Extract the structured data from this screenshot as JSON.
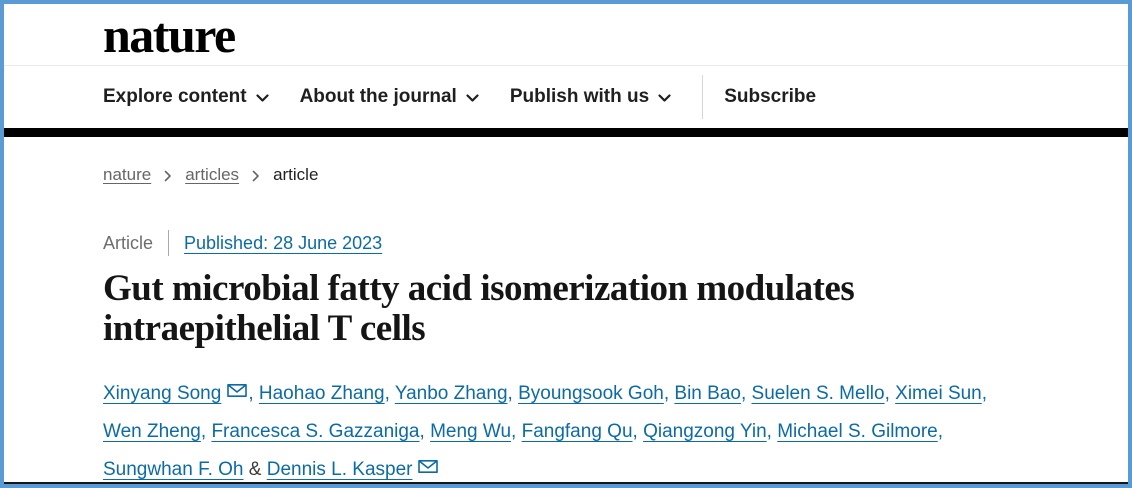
{
  "header": {
    "logo": "nature",
    "nav": [
      {
        "label": "Explore content",
        "chevron": true
      },
      {
        "label": "About the journal",
        "chevron": true
      },
      {
        "label": "Publish with us",
        "chevron": true
      },
      {
        "label": "Subscribe",
        "chevron": false,
        "divider_before": true
      }
    ]
  },
  "breadcrumb": [
    {
      "label": "nature",
      "link": true
    },
    {
      "label": "articles",
      "link": true
    },
    {
      "label": "article",
      "link": false
    }
  ],
  "article": {
    "type_label": "Article",
    "published": "Published: 28 June 2023",
    "title_lines": [
      "Gut microbial fatty acid isomerization modulates",
      "intraepithelial T cells"
    ],
    "authors_lines": [
      [
        {
          "name": "Xinyang Song",
          "email_icon": true,
          "sep": ", "
        },
        {
          "name": "Haohao Zhang",
          "sep": ", "
        },
        {
          "name": "Yanbo Zhang",
          "sep": ", "
        },
        {
          "name": "Byoungsook Goh",
          "sep": ", "
        },
        {
          "name": "Bin Bao",
          "sep": ", "
        },
        {
          "name": "Suelen S. Mello",
          "sep": ", "
        },
        {
          "name": "Ximei Sun",
          "sep": ","
        }
      ],
      [
        {
          "name": "Wen Zheng",
          "sep": ", "
        },
        {
          "name": "Francesca S. Gazzaniga",
          "sep": ", "
        },
        {
          "name": "Meng Wu",
          "sep": ", "
        },
        {
          "name": "Fangfang Qu",
          "sep": ", "
        },
        {
          "name": "Qiangzong Yin",
          "sep": ", "
        },
        {
          "name": "Michael S. Gilmore",
          "sep": ","
        }
      ],
      [
        {
          "name": "Sungwhan F. Oh",
          "sep": " & "
        },
        {
          "name": "Dennis L. Kasper",
          "email_icon": true,
          "sep": ""
        }
      ]
    ]
  },
  "icons": {
    "chevron_down": "chevron-down-icon",
    "breadcrumb_chevron": "breadcrumb-chevron-icon",
    "envelope": "email-envelope-icon"
  },
  "colors": {
    "link_blue": "#0c6ba5",
    "border_blue": "#5b9bd5",
    "bar_black": "#000000",
    "muted_gray": "#666666",
    "text_dark": "#1f1f1f"
  }
}
